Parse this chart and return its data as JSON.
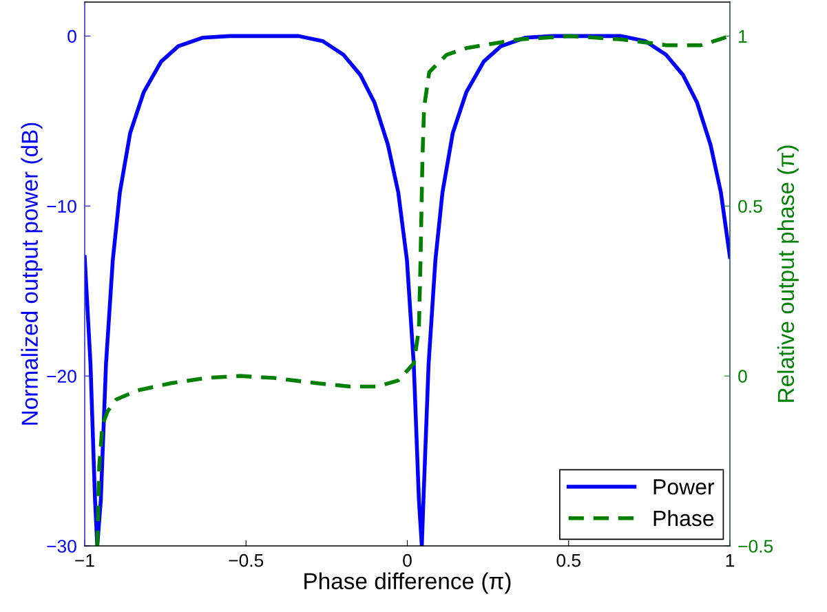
{
  "chart_data": {
    "type": "line",
    "xlabel": "Phase difference (π)",
    "ylabel": "Normalized output power (dB)",
    "y2label": "Relative output phase (π)",
    "xlim": [
      -1,
      1
    ],
    "xticks": [
      {
        "value": -1,
        "label": "−1"
      },
      {
        "value": -0.5,
        "label": "−0.5"
      },
      0,
      0.5,
      1
    ],
    "ylim": [
      -30,
      2
    ],
    "yticks": [
      {
        "value": -30,
        "label": "−30"
      },
      {
        "value": -20,
        "label": "−20"
      },
      {
        "value": -10,
        "label": "−10"
      },
      0
    ],
    "y2lim": [
      -0.5,
      1.1
    ],
    "y2ticks": [
      {
        "value": -0.5,
        "label": "−0.5"
      },
      0,
      0.5,
      1
    ],
    "grid": false,
    "legend": "bottom right",
    "series": [
      {
        "name": "Power",
        "color": "#0000ff",
        "line_style": "solid",
        "x": [
          -1,
          -0.982,
          -0.968,
          -0.961,
          -0.95,
          -0.934,
          -0.913,
          -0.891,
          -0.859,
          -0.817,
          -0.763,
          -0.71,
          -0.635,
          -0.55,
          -0.444,
          -0.337,
          -0.262,
          -0.198,
          -0.145,
          -0.102,
          -0.06,
          -0.028,
          -0.001,
          0.02,
          0.036,
          0.045,
          0.05,
          0.066,
          0.087,
          0.109,
          0.141,
          0.183,
          0.237,
          0.29,
          0.365,
          0.45,
          0.556,
          0.663,
          0.738,
          0.802,
          0.855,
          0.898,
          0.94,
          0.972,
          1
        ],
        "values": [
          -13.0,
          -19.3,
          -27.3,
          -30,
          -27.3,
          -19.3,
          -13.2,
          -9.2,
          -5.7,
          -3.3,
          -1.5,
          -0.6,
          -0.1,
          0,
          0,
          0,
          -0.3,
          -1.1,
          -2.3,
          -3.9,
          -6.4,
          -9.2,
          -13.2,
          -19.3,
          -27.3,
          -30,
          -27.3,
          -19.3,
          -13.2,
          -9.2,
          -5.7,
          -3.3,
          -1.5,
          -0.6,
          -0.1,
          0,
          0,
          0,
          -0.3,
          -1.1,
          -2.3,
          -3.9,
          -6.4,
          -9.2,
          -13.0
        ]
      },
      {
        "name": "Phase",
        "color": "#008000",
        "line_style": "dashed",
        "axis": "y2",
        "x": [
          -0.961,
          -0.955,
          -0.945,
          -0.929,
          -0.902,
          -0.838,
          -0.731,
          -0.625,
          -0.518,
          -0.412,
          -0.284,
          -0.177,
          -0.092,
          -0.028,
          0.02,
          0.036,
          0.041,
          0.047,
          0.052,
          0.068,
          0.122,
          0.185,
          0.345,
          0.505,
          0.665,
          0.804,
          0.91,
          1
        ],
        "values": [
          -0.5,
          -0.265,
          -0.144,
          -0.104,
          -0.069,
          -0.043,
          -0.021,
          -0.006,
          0,
          -0.006,
          -0.021,
          -0.031,
          -0.031,
          -0.013,
          0.037,
          0.138,
          0.34,
          0.64,
          0.79,
          0.894,
          0.945,
          0.965,
          0.99,
          1.0,
          0.99,
          0.973,
          0.973,
          1.0
        ]
      }
    ]
  }
}
